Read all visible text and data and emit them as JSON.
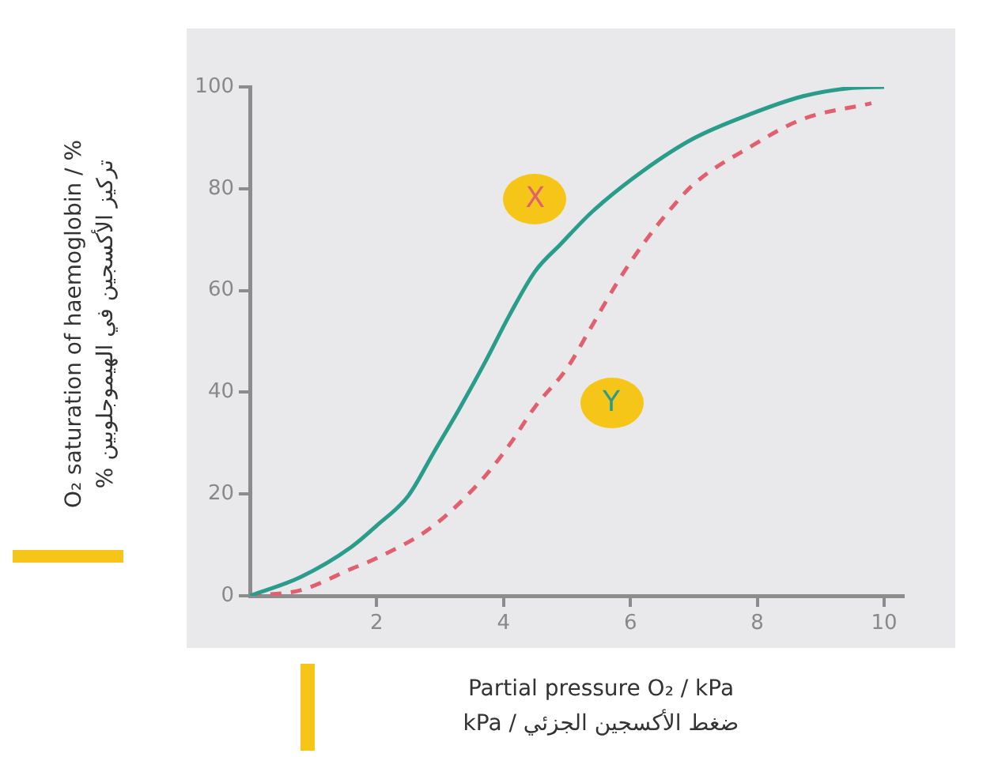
{
  "chart_data": {
    "type": "line",
    "xlabel": "Partial pressure O₂ / kPa\nضغط الأكسجين الجزئي / kPa",
    "ylabel": "O₂ saturation of haemoglobin / %\nتركيز الأكسجين في الهيموجلوبين %",
    "xlim": [
      0,
      10.3
    ],
    "xticks": [
      2,
      4,
      6,
      8,
      10
    ],
    "ylim": [
      0,
      100
    ],
    "yticks": [
      0,
      20,
      40,
      60,
      80,
      100
    ],
    "grid": false,
    "legend": false,
    "marker": "none",
    "series": [
      {
        "color": "#2a9d8a",
        "line_style": "solid",
        "x": [
          0,
          0.8,
          1.6,
          2.0,
          2.5,
          2.9,
          3.3,
          3.7,
          4.1,
          4.5,
          4.9,
          5.4,
          6.2,
          7.0,
          7.9,
          8.7,
          9.5,
          10
        ],
        "values": [
          0,
          3.7,
          9.6,
          13.8,
          19.7,
          28.2,
          36.7,
          45.7,
          55.3,
          63.8,
          69.1,
          75.5,
          83.5,
          89.9,
          94.7,
          98.1,
          99.8,
          100
        ]
      },
      {
        "color": "#e06070",
        "line_style": "dashed",
        "x": [
          0,
          0.8,
          1.6,
          2.0,
          2.9,
          3.7,
          4.1,
          4.5,
          5.0,
          5.4,
          5.8,
          6.2,
          6.6,
          7.0,
          7.9,
          8.7,
          9.8
        ],
        "values": [
          0,
          1.1,
          5.3,
          7.4,
          13.8,
          23.4,
          29.8,
          37.2,
          44.7,
          53.2,
          61.7,
          69.1,
          75.5,
          80.9,
          88.3,
          93.6,
          96.8
        ]
      }
    ],
    "annotations": [
      {
        "text": "X",
        "x": 4.5,
        "y": 78
      },
      {
        "text": "Y",
        "x": 5.7,
        "y": 38
      }
    ]
  }
}
